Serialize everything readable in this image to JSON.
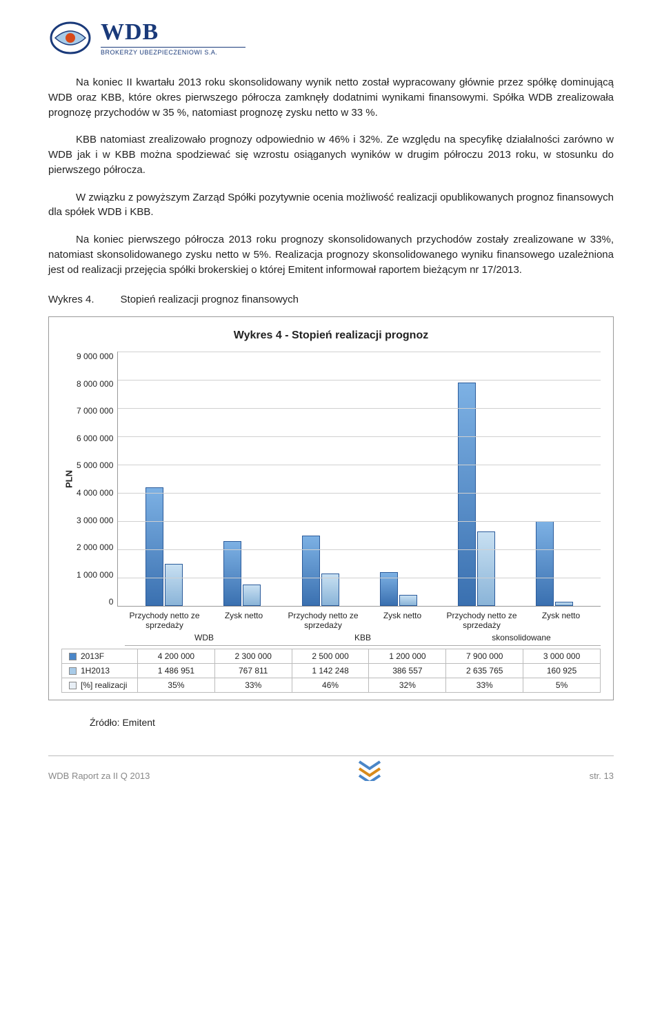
{
  "logo": {
    "main": "WDB",
    "sub": "BROKERZY UBEZPIECZENIOWI S.A."
  },
  "paragraphs": {
    "p1": "Na koniec II kwartału 2013 roku skonsolidowany wynik netto został wypracowany głównie przez spółkę dominującą WDB oraz KBB, które okres pierwszego półrocza zamknęły dodatnimi wynikami finansowymi. Spółka WDB zrealizowała prognozę przychodów w 35 %, natomiast prognozę zysku netto w 33 %.",
    "p2": "KBB natomiast zrealizowało prognozy odpowiednio w 46% i 32%. Ze względu na specyfikę działalności zarówno w WDB jak i w KBB  można spodziewać się wzrostu osiąganych wyników w drugim półroczu 2013 roku, w stosunku do pierwszego półrocza.",
    "p3": "W związku z powyższym Zarząd Spółki pozytywnie ocenia możliwość realizacji opublikowanych prognoz finansowych dla spółek WDB i KBB.",
    "p4": "Na koniec pierwszego półrocza 2013 roku prognozy skonsolidowanych przychodów zostały zrealizowane w 33%, natomiast skonsolidowanego zysku netto w 5%. Realizacja prognozy skonsolidowanego wyniku finansowego uzależniona jest od realizacji przejęcia spółki brokerskiej o której Emitent informował raportem bieżącym nr 17/2013."
  },
  "caption": {
    "num": "Wykres 4.",
    "text": "Stopień realizacji prognoz finansowych"
  },
  "chart": {
    "title": "Wykres 4 - Stopień realizacji prognoz",
    "ylabel": "PLN",
    "ymax": 9000000,
    "yticks": [
      "9 000 000",
      "8 000 000",
      "7 000 000",
      "6 000 000",
      "5 000 000",
      "4 000 000",
      "3 000 000",
      "2 000 000",
      "1 000 000",
      "0"
    ],
    "grid_color": "#d0d0d0",
    "background_color": "#ffffff",
    "series": [
      {
        "name": "2013F",
        "swatch": "#4a86c8",
        "gradient": [
          "#7db1e4",
          "#3a70b0"
        ],
        "values": [
          4200000,
          2300000,
          2500000,
          1200000,
          7900000,
          3000000
        ]
      },
      {
        "name": "1H2013",
        "swatch": "#a8cbe8",
        "gradient": [
          "#c8e0f2",
          "#8ab4d8"
        ],
        "values": [
          1486951,
          767811,
          1142248,
          386557,
          2635765,
          160925
        ]
      },
      {
        "name": "[%] realizacji",
        "swatch": "#e8eff6",
        "gradient": [
          "#f2f6fa",
          "#d8e4ee"
        ],
        "values_pct": [
          "35%",
          "33%",
          "46%",
          "32%",
          "33%",
          "5%"
        ]
      }
    ],
    "x_sub_labels": [
      "Przychody netto ze sprzedaży",
      "Zysk netto",
      "Przychody netto ze sprzedaży",
      "Zysk netto",
      "Przychody netto ze sprzedaży",
      "Zysk netto"
    ],
    "x_group_labels": [
      "WDB",
      "KBB",
      "skonsolidowane"
    ],
    "table": {
      "rows": [
        {
          "label": "2013F",
          "swatch": "#4a86c8",
          "cells": [
            "4 200 000",
            "2 300 000",
            "2 500 000",
            "1 200 000",
            "7 900 000",
            "3 000 000"
          ]
        },
        {
          "label": "1H2013",
          "swatch": "#a8cbe8",
          "cells": [
            "1 486 951",
            "767 811",
            "1 142 248",
            "386 557",
            "2 635 765",
            "160 925"
          ]
        },
        {
          "label": "[%] realizacji",
          "swatch": "#e8eff6",
          "cells": [
            "35%",
            "33%",
            "46%",
            "32%",
            "33%",
            "5%"
          ]
        }
      ]
    }
  },
  "source": "Źródło: Emitent",
  "footer": {
    "left": "WDB Raport za II Q 2013",
    "right": "str. 13"
  }
}
